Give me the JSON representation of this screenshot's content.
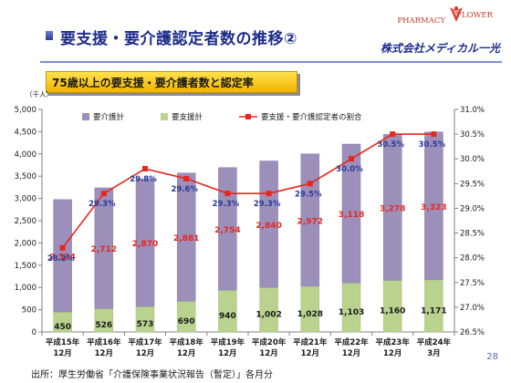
{
  "header": {
    "title": "要支援・要介護認定者数の推移②",
    "subtitle": "75歳以上の要支援・要介護者数と認定率",
    "logo_text_1": "PHARMACY",
    "logo_text_2": "FLOWER",
    "company": "株式会社メディカル一光"
  },
  "footer": {
    "source": "出所：厚生労働省「介護保険事業状況報告（暫定）」各月分",
    "page_number": "28"
  },
  "colors": {
    "care": "#9c8fba",
    "support": "#b9d38f",
    "rate": "#e8261c",
    "title": "#1d2c8c"
  },
  "chart_data": {
    "type": "bar",
    "stacked": true,
    "unit_label": "（千人）",
    "categories": [
      [
        "平成15年",
        "12月"
      ],
      [
        "平成16年",
        "12月"
      ],
      [
        "平成17年",
        "12月"
      ],
      [
        "平成18年",
        "12月"
      ],
      [
        "平成19年",
        "12月"
      ],
      [
        "平成20年",
        "12月"
      ],
      [
        "平成21年",
        "12月"
      ],
      [
        "平成22年",
        "12月"
      ],
      [
        "平成23年",
        "12月"
      ],
      [
        "平成24年",
        "3月"
      ]
    ],
    "series": [
      {
        "name": "要支援計",
        "values": [
          450,
          526,
          573,
          690,
          940,
          1002,
          1028,
          1103,
          1160,
          1171
        ],
        "labels": [
          "450",
          "526",
          "573",
          "690",
          "940",
          "1,002",
          "1,028",
          "1,103",
          "1,160",
          "1,171"
        ]
      },
      {
        "name": "要介護計",
        "values": [
          2524,
          2712,
          2870,
          2881,
          2754,
          2840,
          2972,
          3118,
          3278,
          3323
        ],
        "labels": [
          "2,524",
          "2,712",
          "2,870",
          "2,881",
          "2,754",
          "2,840",
          "2,972",
          "3,118",
          "3,278",
          "3,323"
        ]
      }
    ],
    "line_series": {
      "name": "要支援・要介護認定者の割合",
      "values": [
        28.2,
        29.3,
        29.8,
        29.6,
        29.3,
        29.3,
        29.5,
        30.0,
        30.5,
        30.5
      ],
      "labels": [
        "28.2%",
        "29.3%",
        "29.8%",
        "29.6%",
        "29.3%",
        "29.3%",
        "29.5%",
        "30.0%",
        "30.5%",
        "30.5%"
      ]
    },
    "legend_order": [
      "要介護計",
      "要支援計",
      "要支援・要介護認定者の割合"
    ],
    "legend_position": "top",
    "y_left": {
      "min": 0,
      "max": 5000,
      "step": 500,
      "tick_labels": [
        "0",
        "500",
        "1,000",
        "1,500",
        "2,000",
        "2,500",
        "3,000",
        "3,500",
        "4,000",
        "4,500",
        "5,000"
      ]
    },
    "y_right": {
      "min": 26.5,
      "max": 31.0,
      "step": 0.5,
      "tick_labels": [
        "26.5%",
        "27.0%",
        "27.5%",
        "28.0%",
        "28.5%",
        "29.0%",
        "29.5%",
        "30.0%",
        "30.5%",
        "31.0%"
      ]
    },
    "grid": false
  }
}
